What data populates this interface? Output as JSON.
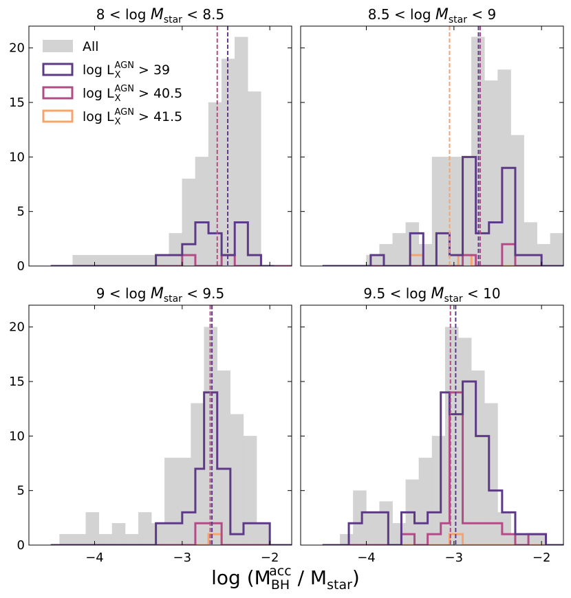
{
  "figure": {
    "xlabel_main": "log (M",
    "xlabel_sup": "acc",
    "xlabel_sub": "BH",
    "xlabel_mid": " / M",
    "xlabel_sub2": "star",
    "xlabel_end": ")"
  },
  "chart_data": {
    "type": "bar",
    "x_axis": {
      "range": [
        -4.75,
        -1.75
      ],
      "ticks": [
        -4,
        -3,
        -2
      ],
      "tick_labels": [
        "−4",
        "−3",
        "−2"
      ]
    },
    "y_axis": {
      "range": [
        0,
        22
      ],
      "ticks": [
        0,
        5,
        10,
        15,
        20
      ],
      "tick_labels": [
        "0",
        "5",
        "10",
        "15",
        "20"
      ]
    },
    "legend": {
      "placement": "top-left",
      "entries": [
        {
          "label_main": "All",
          "label_sup": "",
          "label_sub": "",
          "label_tail": ""
        },
        {
          "label_main": "log L",
          "label_sup": "AGN",
          "label_sub": "X",
          "label_tail": " > 39"
        },
        {
          "label_main": "log L",
          "label_sup": "AGN",
          "label_sub": "X",
          "label_tail": " > 40.5"
        },
        {
          "label_main": "log L",
          "label_sup": "AGN",
          "label_sub": "X",
          "label_tail": " > 41.5"
        }
      ]
    },
    "colors": {
      "All": "#d3d3d3",
      "gt39": "#5c3a86",
      "gt40_5": "#b24c86",
      "gt41_5": "#f5a46f"
    },
    "panels": [
      {
        "title_pre": "8 < log ",
        "title_var": "M",
        "title_sub": "star",
        "title_post": " < 8.5",
        "series": [
          {
            "name": "All",
            "style": "fill",
            "edges": [
              -4.25,
              -3.3,
              -3.15,
              -3.0,
              -2.85,
              -2.7,
              -2.55,
              -2.4,
              -2.25,
              -2.1
            ],
            "values": [
              1,
              1,
              3,
              8,
              10,
              15,
              19,
              21,
              16
            ]
          },
          {
            "name": "gt39",
            "style": "step",
            "edges": [
              -4.5,
              -3.3,
              -3.15,
              -3.0,
              -2.85,
              -2.7,
              -2.55,
              -2.4,
              -2.25,
              -2.1,
              -1.95
            ],
            "values": [
              0,
              1,
              1,
              2,
              4,
              3,
              1,
              4,
              1,
              0
            ]
          },
          {
            "name": "gt40_5",
            "style": "step",
            "edges": [
              -4.5,
              -3.0,
              -2.85,
              -2.55,
              -2.4,
              -1.75
            ],
            "values": [
              0,
              1,
              0,
              1,
              0
            ]
          }
        ],
        "vlines": [
          {
            "series": "gt39",
            "x": -2.48
          },
          {
            "series": "gt40_5",
            "x": -2.6
          }
        ]
      },
      {
        "title_pre": "8.5 < log ",
        "title_var": "M",
        "title_sub": "star",
        "title_post": " < 9",
        "series": [
          {
            "name": "All",
            "style": "fill",
            "edges": [
              -4.0,
              -3.85,
              -3.7,
              -3.55,
              -3.4,
              -3.25,
              -3.1,
              -2.95,
              -2.8,
              -2.65,
              -2.5,
              -2.35,
              -2.2,
              -2.05,
              -1.9,
              -1.75
            ],
            "values": [
              1,
              2,
              3,
              4,
              2,
              10,
              10,
              10,
              21,
              17,
              18,
              12,
              4,
              2,
              3
            ]
          },
          {
            "name": "gt39",
            "style": "step",
            "edges": [
              -4.5,
              -3.95,
              -3.8,
              -3.5,
              -3.35,
              -3.2,
              -3.05,
              -2.9,
              -2.75,
              -2.6,
              -2.45,
              -2.3,
              -2.15,
              -2.0,
              -1.75
            ],
            "values": [
              0,
              1,
              0,
              3,
              0,
              3,
              1,
              10,
              3,
              4,
              9,
              1,
              1,
              0
            ]
          },
          {
            "name": "gt40_5",
            "style": "step",
            "edges": [
              -4.5,
              -2.9,
              -2.75,
              -2.45,
              -2.3,
              -1.75
            ],
            "values": [
              0,
              1,
              0,
              2,
              0
            ]
          },
          {
            "name": "gt41_5",
            "style": "step",
            "edges": [
              -4.5,
              -3.5,
              -3.35,
              -2.95,
              -2.8,
              -1.75
            ],
            "values": [
              0,
              1,
              0,
              1,
              0
            ]
          }
        ],
        "vlines": [
          {
            "series": "gt41_5",
            "x": -3.05
          },
          {
            "series": "gt39",
            "x": -2.72
          },
          {
            "series": "gt40_5",
            "x": -2.7
          }
        ]
      },
      {
        "title_pre": "9 < log ",
        "title_var": "M",
        "title_sub": "star",
        "title_post": " < 9.5",
        "series": [
          {
            "name": "All",
            "style": "fill",
            "edges": [
              -4.4,
              -4.1,
              -3.95,
              -3.8,
              -3.65,
              -3.5,
              -3.35,
              -3.2,
              -3.05,
              -2.9,
              -2.75,
              -2.6,
              -2.45,
              -2.3,
              -2.15,
              -2.0
            ],
            "values": [
              1,
              3,
              1,
              2,
              1,
              3,
              2,
              8,
              8,
              13,
              20,
              16,
              12,
              10,
              2
            ]
          },
          {
            "name": "gt39",
            "style": "step",
            "edges": [
              -4.5,
              -3.3,
              -3.0,
              -2.85,
              -2.75,
              -2.6,
              -2.45,
              -2.3,
              -2.15,
              -2.0,
              -1.75
            ],
            "values": [
              0,
              2,
              3,
              7,
              14,
              7,
              1,
              2,
              2,
              0
            ]
          },
          {
            "name": "gt40_5",
            "style": "step",
            "edges": [
              -4.5,
              -2.85,
              -2.65,
              -2.55,
              -1.75
            ],
            "values": [
              0,
              2,
              2,
              0
            ]
          },
          {
            "name": "gt41_5",
            "style": "step",
            "edges": [
              -4.5,
              -2.7,
              -2.55,
              -1.75
            ],
            "values": [
              0,
              1,
              0
            ]
          }
        ],
        "vlines": [
          {
            "series": "gt39",
            "x": -2.66
          },
          {
            "series": "gt40_5",
            "x": -2.68
          }
        ]
      },
      {
        "title_pre": "9.5 < log ",
        "title_var": "M",
        "title_sub": "star",
        "title_post": " < 10",
        "series": [
          {
            "name": "All",
            "style": "fill",
            "edges": [
              -4.3,
              -4.15,
              -4.0,
              -3.85,
              -3.7,
              -3.55,
              -3.4,
              -3.25,
              -3.1,
              -2.95,
              -2.8,
              -2.65,
              -2.5,
              -2.35,
              -2.2,
              -1.95
            ],
            "values": [
              1,
              5,
              3,
              4,
              2,
              6,
              8,
              10,
              20,
              19,
              16,
              13,
              3,
              1,
              1
            ]
          },
          {
            "name": "gt39",
            "style": "step",
            "edges": [
              -4.5,
              -4.2,
              -4.05,
              -3.75,
              -3.6,
              -3.45,
              -3.3,
              -3.15,
              -3.05,
              -2.9,
              -2.75,
              -2.6,
              -2.45,
              -2.3,
              -2.15,
              -1.95,
              -1.75
            ],
            "values": [
              0,
              2,
              3,
              0,
              3,
              2,
              3,
              14,
              12,
              15,
              10,
              5,
              3,
              1,
              1,
              0
            ]
          },
          {
            "name": "gt40_5",
            "style": "step",
            "edges": [
              -4.5,
              -3.6,
              -3.45,
              -3.3,
              -3.15,
              -3.05,
              -2.9,
              -2.6,
              -2.45,
              -2.3,
              -2.15,
              -1.95,
              -1.75
            ],
            "values": [
              0,
              1,
              0,
              1,
              2,
              14,
              2,
              2,
              1,
              0,
              1,
              0
            ]
          },
          {
            "name": "gt41_5",
            "style": "step",
            "edges": [
              -4.5,
              -3.05,
              -2.9,
              -1.75
            ],
            "values": [
              0,
              1,
              0
            ]
          }
        ],
        "vlines": [
          {
            "series": "gt40_5",
            "x": -3.04
          },
          {
            "series": "gt39",
            "x": -2.98
          }
        ]
      }
    ]
  }
}
